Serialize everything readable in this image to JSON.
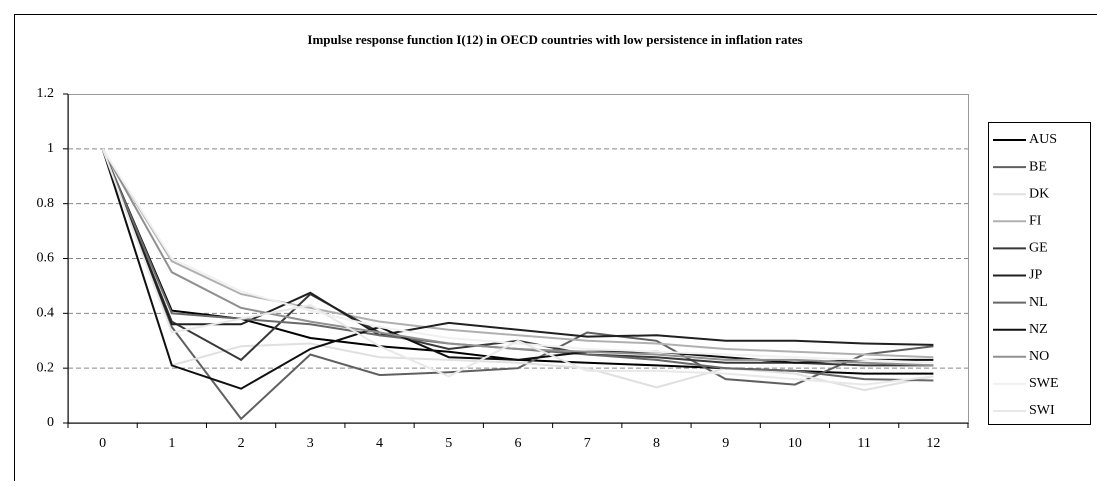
{
  "chart_data": {
    "type": "line",
    "title": "Impulse response function I(12) in OECD countries with low persistence in inflation rates",
    "categories": [
      "0",
      "1",
      "2",
      "3",
      "4",
      "5",
      "6",
      "7",
      "8",
      "9",
      "10",
      "11",
      "12"
    ],
    "ylim": [
      0,
      1.2
    ],
    "yticks": [
      0,
      0.2,
      0.4,
      0.6,
      0.8,
      1,
      1.2
    ],
    "grid": true,
    "legend": "right",
    "series": [
      {
        "name": "AUS",
        "color": "#000000",
        "values": [
          1,
          0.41,
          0.38,
          0.31,
          0.28,
          0.26,
          0.23,
          0.22,
          0.21,
          0.2,
          0.19,
          0.18,
          0.18
        ]
      },
      {
        "name": "BE",
        "color": "#606060",
        "values": [
          1,
          0.35,
          0.015,
          0.25,
          0.175,
          0.185,
          0.2,
          0.33,
          0.3,
          0.16,
          0.14,
          0.25,
          0.28
        ]
      },
      {
        "name": "DK",
        "color": "#e0e0e0",
        "values": [
          1,
          0.21,
          0.28,
          0.29,
          0.24,
          0.23,
          0.22,
          0.2,
          0.13,
          0.2,
          0.18,
          0.12,
          0.17
        ]
      },
      {
        "name": "FI",
        "color": "#b0b0b0",
        "values": [
          1,
          0.59,
          0.47,
          0.42,
          0.37,
          0.34,
          0.32,
          0.3,
          0.29,
          0.27,
          0.26,
          0.25,
          0.24
        ]
      },
      {
        "name": "GE",
        "color": "#383838",
        "values": [
          1,
          0.37,
          0.23,
          0.47,
          0.33,
          0.27,
          0.3,
          0.25,
          0.24,
          0.22,
          0.22,
          0.21,
          0.21
        ]
      },
      {
        "name": "JP",
        "color": "#202020",
        "values": [
          1,
          0.36,
          0.36,
          0.475,
          0.32,
          0.365,
          0.34,
          0.315,
          0.32,
          0.3,
          0.3,
          0.29,
          0.285
        ]
      },
      {
        "name": "NL",
        "color": "#686868",
        "values": [
          1,
          0.4,
          0.38,
          0.36,
          0.32,
          0.29,
          0.27,
          0.25,
          0.23,
          0.2,
          0.19,
          0.16,
          0.155
        ]
      },
      {
        "name": "NZ",
        "color": "#101010",
        "values": [
          1,
          0.21,
          0.125,
          0.27,
          0.35,
          0.24,
          0.23,
          0.26,
          0.26,
          0.24,
          0.22,
          0.23,
          0.23
        ]
      },
      {
        "name": "NO",
        "color": "#909090",
        "values": [
          1,
          0.55,
          0.42,
          0.37,
          0.33,
          0.29,
          0.27,
          0.26,
          0.25,
          0.23,
          0.23,
          0.22,
          0.21
        ]
      },
      {
        "name": "SWE",
        "color": "#f0f0f0",
        "values": [
          1,
          0.6,
          0.48,
          0.41,
          0.35,
          0.31,
          0.29,
          0.27,
          0.26,
          0.25,
          0.24,
          0.23,
          0.22
        ]
      },
      {
        "name": "SWI",
        "color": "#e8e8e8",
        "values": [
          1,
          0.33,
          0.38,
          0.43,
          0.28,
          0.17,
          0.3,
          0.19,
          0.19,
          0.18,
          0.16,
          0.14,
          0.17
        ]
      }
    ]
  }
}
